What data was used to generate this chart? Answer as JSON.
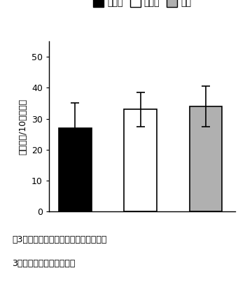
{
  "categories": [
    "ケナガ",
    "ミヤコ",
    "チリ"
  ],
  "values": [
    27.0,
    33.0,
    34.0
  ],
  "errors_upper": [
    8.0,
    5.5,
    6.5
  ],
  "errors_lower": [
    6.5,
    5.5,
    6.5
  ],
  "bar_colors": [
    "#000000",
    "#ffffff",
    "#b0b0b0"
  ],
  "bar_edgecolors": [
    "#000000",
    "#000000",
    "#000000"
  ],
  "ylabel": "糸切り数/10分間移動",
  "ylim": [
    0,
    55
  ],
  "yticks": [
    0,
    10,
    20,
    30,
    40,
    50
  ],
  "legend_labels": [
    "ケナガ",
    "ミヤコ",
    "チリ"
  ],
  "legend_colors": [
    "#000000",
    "#ffffff",
    "#b0b0b0"
  ],
  "caption_line1": "図3　ナミハダニの立体網内部における",
  "caption_line2": "3種カブリダニの糸切り数",
  "background_color": "#ffffff",
  "bar_width": 0.5,
  "bar_positions": [
    0.7,
    1.7,
    2.7
  ]
}
